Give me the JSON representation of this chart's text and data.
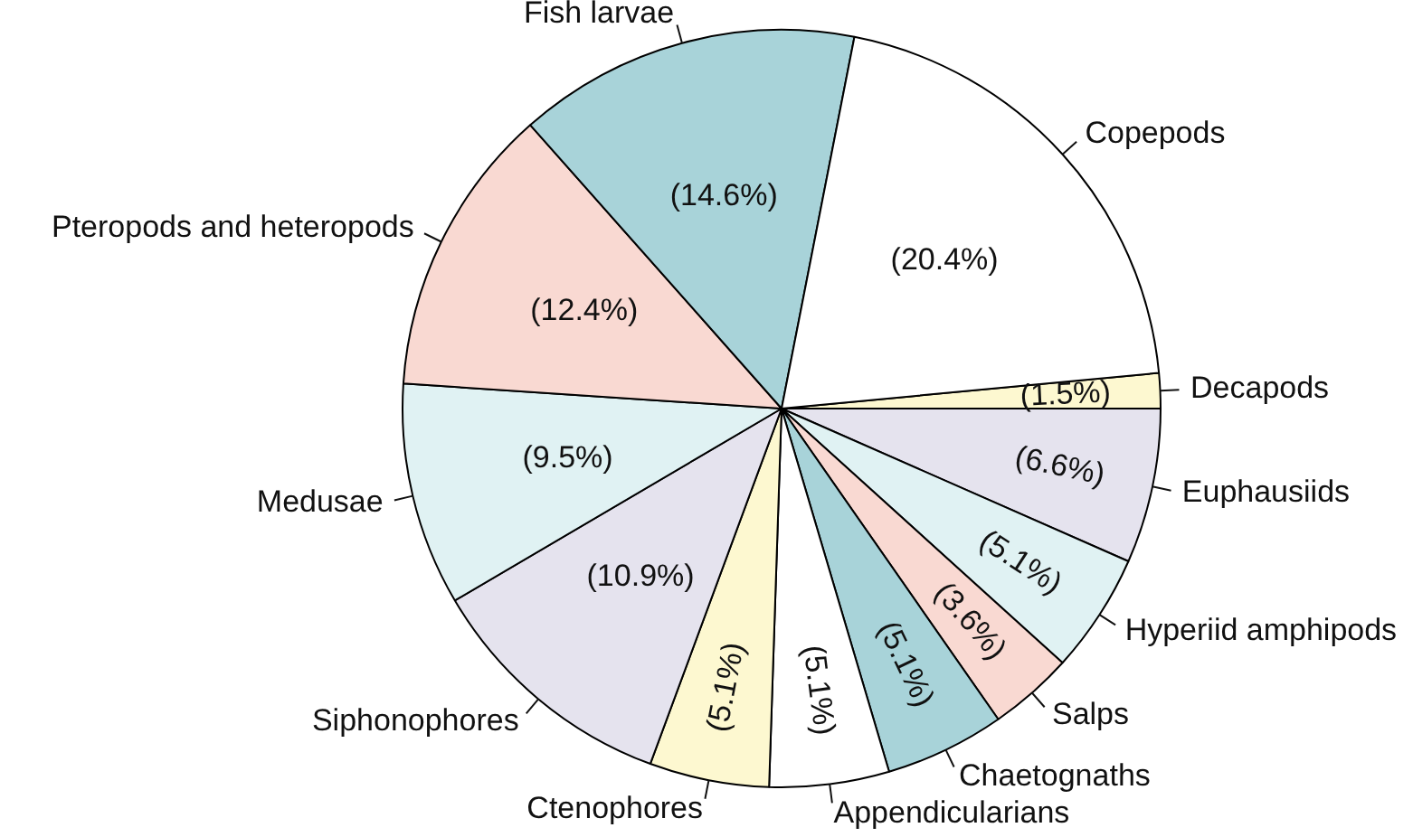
{
  "chart_data": {
    "type": "pie",
    "categories": [
      "Decapods",
      "Euphausiids",
      "Hyperiid amphipods",
      "Salps",
      "Chaetognaths",
      "Appendicularians",
      "Ctenophores",
      "Siphonophores",
      "Medusae",
      "Pteropods and heteropods",
      "Fish larvae",
      "Copepods"
    ],
    "values": [
      1.5,
      6.6,
      5.1,
      3.6,
      5.1,
      5.1,
      5.1,
      10.9,
      9.5,
      12.4,
      14.6,
      20.4
    ],
    "value_labels": [
      "(1.5%)",
      "(6.6%)",
      "(5.1%)",
      "(3.6%)",
      "(5.1%)",
      "(5.1%)",
      "(5.1%)",
      "(10.9%)",
      "(9.5%)",
      "(12.4%)",
      "(14.6%)",
      "(20.4%)"
    ],
    "colors": [
      "#fdf8d0",
      "#e5e3ee",
      "#e0f2f3",
      "#f9d9d2",
      "#a8d3d9",
      "#ffffff",
      "#fdf8d0",
      "#e5e3ee",
      "#e0f2f3",
      "#f9d9d2",
      "#a8d3d9",
      "#ffffff"
    ]
  }
}
